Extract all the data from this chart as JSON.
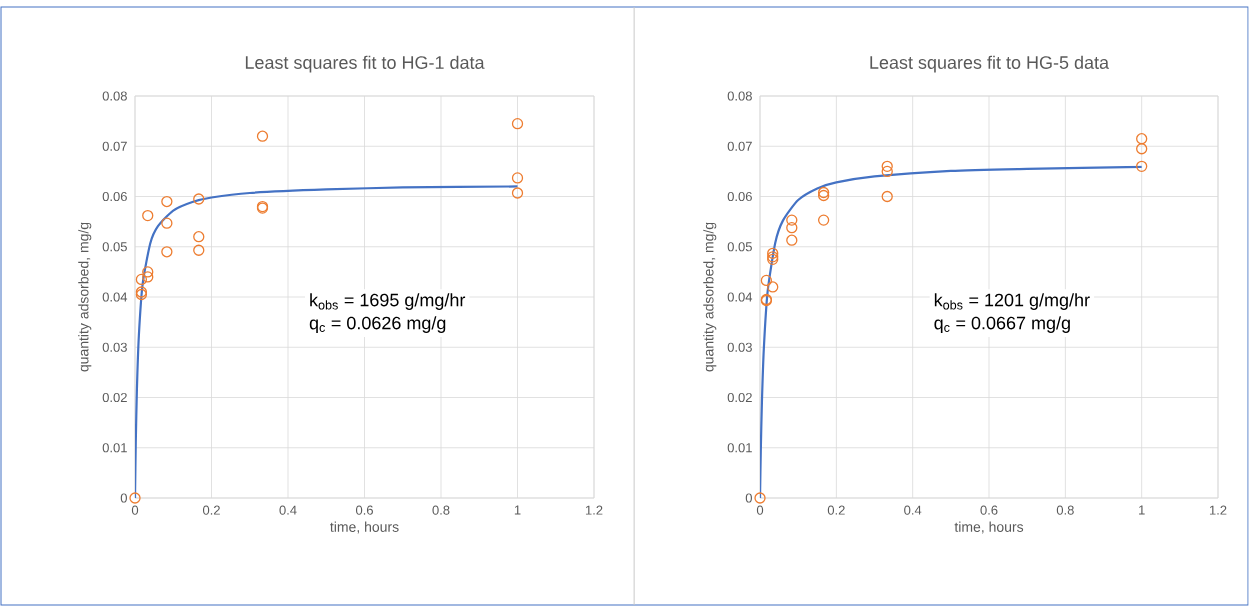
{
  "chart_data": [
    {
      "type": "scatter",
      "title": "Least squares fit to HG-1 data",
      "xlabel": "time, hours",
      "ylabel": "quantity adsorbed, mg/g",
      "annotations": [
        "k$_{obs}$ = 1695 g/mg/hr",
        "q$_{c}$ = 0.0626 mg/g"
      ],
      "xlim": [
        0,
        1.2
      ],
      "ylim": [
        0,
        0.08
      ],
      "xticks": [
        0,
        0.2,
        0.4,
        0.6,
        0.8,
        1,
        1.2
      ],
      "yticks": [
        0,
        0.01,
        0.02,
        0.03,
        0.04,
        0.05,
        0.06,
        0.07,
        0.08
      ],
      "grid": true,
      "series": [
        {
          "type": "line",
          "color": "#4472c4",
          "marker": "none",
          "x": [
            0,
            0.002,
            0.005,
            0.01,
            0.02,
            0.04,
            0.06,
            0.1,
            0.15,
            0.2,
            0.3,
            0.5,
            0.7,
            1
          ],
          "values": [
            0,
            0.011,
            0.0217,
            0.0322,
            0.0426,
            0.0507,
            0.0541,
            0.0572,
            0.0589,
            0.0598,
            0.0607,
            0.0614,
            0.0618,
            0.062
          ]
        },
        {
          "type": "scatter",
          "color": "#ed7d31",
          "marker": "circle",
          "x": [
            0,
            0.0167,
            0.0167,
            0.0167,
            0.0333,
            0.0333,
            0.0333,
            0.0833,
            0.0833,
            0.0833,
            0.1667,
            0.1667,
            0.1667,
            0.3333,
            0.3333,
            0.3333,
            1,
            1,
            1
          ],
          "values": [
            0,
            0.0405,
            0.041,
            0.0435,
            0.044,
            0.045,
            0.0562,
            0.059,
            0.0547,
            0.049,
            0.0595,
            0.052,
            0.0493,
            0.072,
            0.058,
            0.0577,
            0.0745,
            0.0637,
            0.0607
          ]
        }
      ]
    },
    {
      "type": "scatter",
      "title": "Least squares fit to HG-5 data",
      "xlabel": "time, hours",
      "ylabel": "quantity adsorbed, mg/g",
      "annotations": [
        "k$_{obs}$ = 1201 g/mg/hr",
        "q$_{c}$ = 0.0667 mg/g"
      ],
      "xlim": [
        0,
        1.2
      ],
      "ylim": [
        0,
        0.08
      ],
      "xticks": [
        0,
        0.2,
        0.4,
        0.6,
        0.8,
        1,
        1.2
      ],
      "yticks": [
        0,
        0.01,
        0.02,
        0.03,
        0.04,
        0.05,
        0.06,
        0.07,
        0.08
      ],
      "grid": true,
      "series": [
        {
          "type": "line",
          "color": "#4472c4",
          "marker": "none",
          "x": [
            0,
            0.002,
            0.005,
            0.01,
            0.02,
            0.04,
            0.06,
            0.1,
            0.15,
            0.2,
            0.3,
            0.5,
            0.7,
            1
          ],
          "values": [
            0,
            0.0092,
            0.0191,
            0.0297,
            0.0411,
            0.0508,
            0.0552,
            0.0593,
            0.0616,
            0.0628,
            0.064,
            0.0651,
            0.0655,
            0.0659
          ]
        },
        {
          "type": "scatter",
          "color": "#ed7d31",
          "marker": "circle",
          "x": [
            0,
            0.0167,
            0.0167,
            0.0167,
            0.0333,
            0.0333,
            0.0333,
            0.0333,
            0.0833,
            0.0833,
            0.0833,
            0.1667,
            0.1667,
            0.1667,
            0.3333,
            0.3333,
            0.3333,
            1,
            1,
            1
          ],
          "values": [
            0,
            0.0393,
            0.0395,
            0.0433,
            0.042,
            0.0475,
            0.048,
            0.0487,
            0.0553,
            0.0538,
            0.0513,
            0.0608,
            0.0602,
            0.0553,
            0.066,
            0.065,
            0.06,
            0.0715,
            0.0695,
            0.066
          ]
        }
      ]
    }
  ]
}
